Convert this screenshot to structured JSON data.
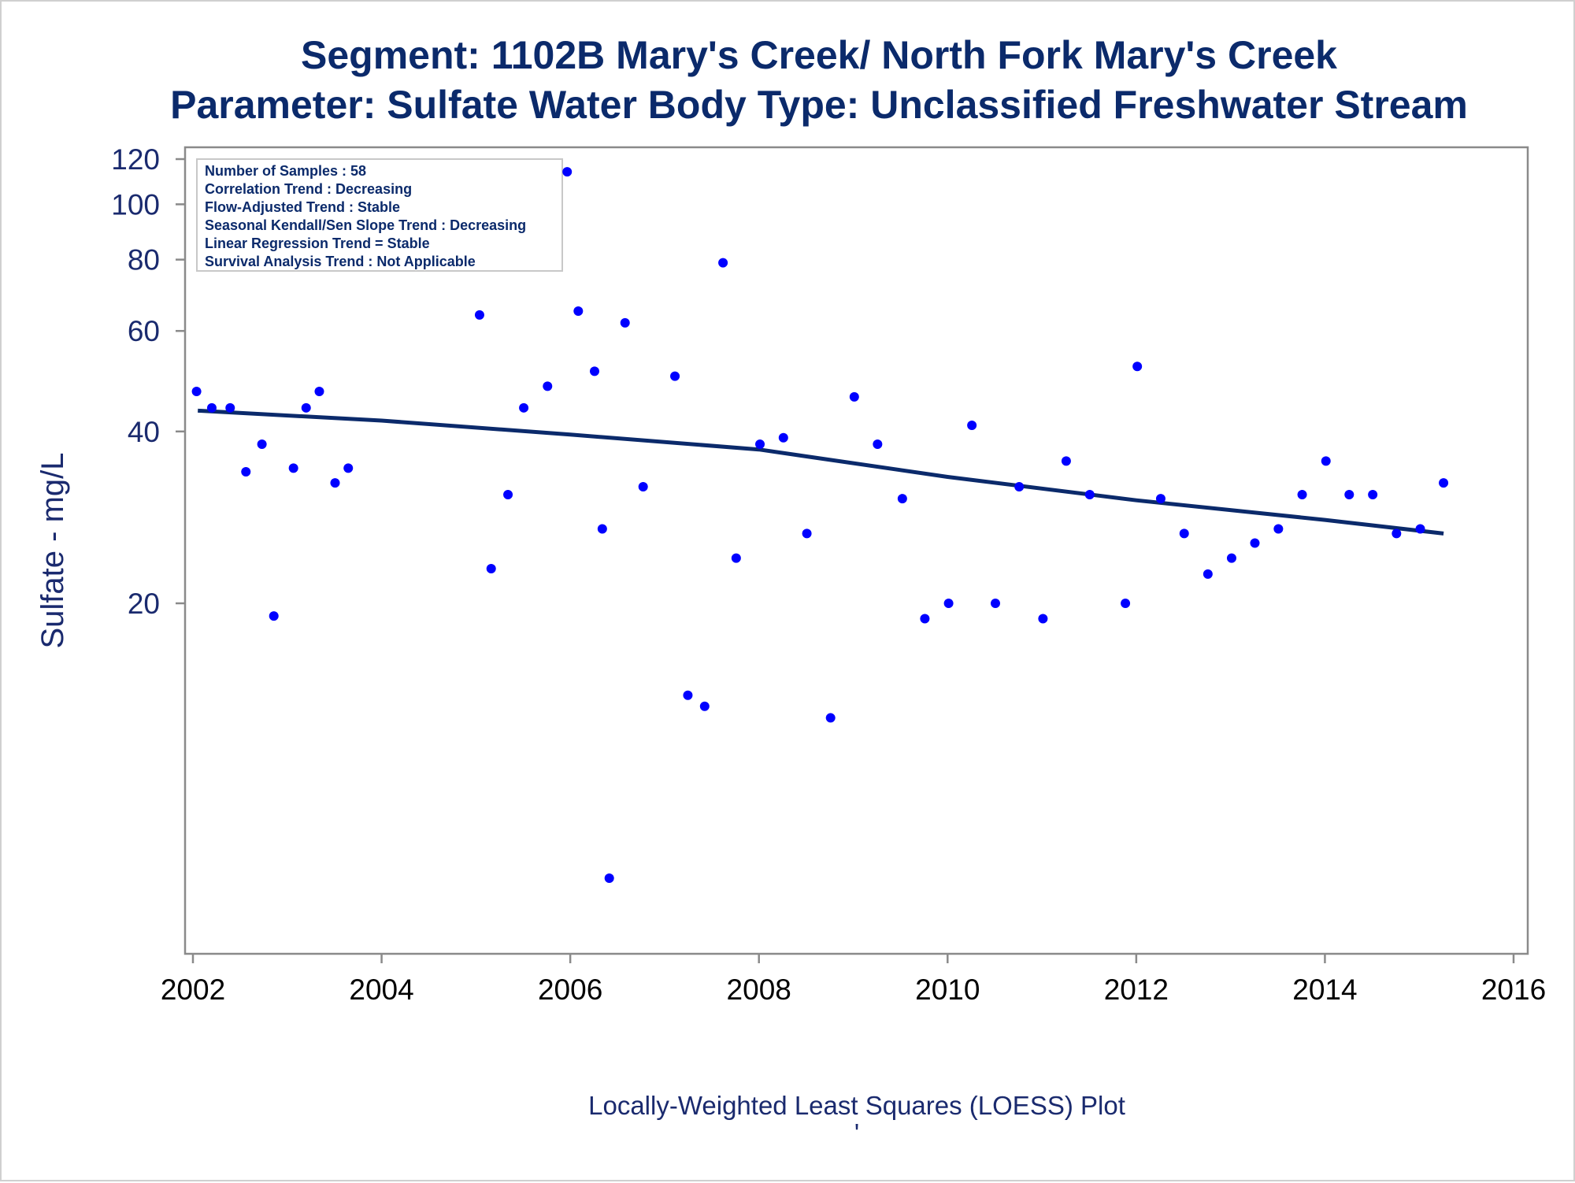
{
  "chart_data": {
    "type": "scatter",
    "title": "Segment: 1102B  Mary's Creek/ North Fork Mary's Creek",
    "subtitle": "Parameter: Sulfate   Water Body Type: Unclassified Freshwater Stream",
    "xlabel": "",
    "ylabel": "Sulfate - mg/L",
    "footnote": "Locally-Weighted Least Squares (LOESS) Plot",
    "footnote_mark": "'",
    "y_scale": "log",
    "xlim": [
      2002,
      2016
    ],
    "ylim": [
      6.5,
      122
    ],
    "x_ticks": [
      2002,
      2004,
      2006,
      2008,
      2010,
      2012,
      2014,
      2016
    ],
    "y_ticks": [
      20,
      40,
      60,
      80,
      100,
      120
    ],
    "grid": false,
    "point_color": "#0000ff",
    "line_color": "#0b2a6b",
    "stats_box": {
      "lines": [
        "Number of Samples : 58",
        "Correlation Trend : Decreasing",
        "Flow-Adjusted Trend : Stable",
        "Seasonal Kendall/Sen Slope Trend : Decreasing",
        "Linear Regression Trend = Stable",
        "Survival Analysis Trend : Not Applicable"
      ]
    },
    "series": [
      {
        "type": "scatter",
        "points": [
          {
            "x": "2002-01-15",
            "y": 47
          },
          {
            "x": "2002-03-15",
            "y": 44
          },
          {
            "x": "2002-05-25",
            "y": 44
          },
          {
            "x": "2002-07-25",
            "y": 34
          },
          {
            "x": "2002-09-25",
            "y": 38
          },
          {
            "x": "2002-11-10",
            "y": 19
          },
          {
            "x": "2003-01-25",
            "y": 34.5
          },
          {
            "x": "2003-03-15",
            "y": 44
          },
          {
            "x": "2003-05-05",
            "y": 47
          },
          {
            "x": "2003-07-05",
            "y": 32.5
          },
          {
            "x": "2003-08-25",
            "y": 34.5
          },
          {
            "x": "2005-01-15",
            "y": 64
          },
          {
            "x": "2005-03-01",
            "y": 23
          },
          {
            "x": "2005-05-05",
            "y": 31
          },
          {
            "x": "2005-07-05",
            "y": 44
          },
          {
            "x": "2005-10-05",
            "y": 48
          },
          {
            "x": "2005-12-20",
            "y": 114
          },
          {
            "x": "2006-02-01",
            "y": 65
          },
          {
            "x": "2006-04-05",
            "y": 51
          },
          {
            "x": "2006-05-05",
            "y": 27
          },
          {
            "x": "2006-06-01",
            "y": 6.6
          },
          {
            "x": "2006-08-01",
            "y": 62
          },
          {
            "x": "2006-10-10",
            "y": 32
          },
          {
            "x": "2007-02-10",
            "y": 50
          },
          {
            "x": "2007-04-01",
            "y": 13.8
          },
          {
            "x": "2007-06-05",
            "y": 13.2
          },
          {
            "x": "2007-08-15",
            "y": 79
          },
          {
            "x": "2007-10-05",
            "y": 24
          },
          {
            "x": "2008-01-05",
            "y": 38
          },
          {
            "x": "2008-04-05",
            "y": 39
          },
          {
            "x": "2008-07-05",
            "y": 26.5
          },
          {
            "x": "2008-10-05",
            "y": 12.6
          },
          {
            "x": "2009-01-05",
            "y": 46
          },
          {
            "x": "2009-04-05",
            "y": 38
          },
          {
            "x": "2009-07-10",
            "y": 30.5
          },
          {
            "x": "2009-10-05",
            "y": 18.8
          },
          {
            "x": "2010-01-05",
            "y": 20
          },
          {
            "x": "2010-04-05",
            "y": 41
          },
          {
            "x": "2010-07-05",
            "y": 20
          },
          {
            "x": "2010-10-05",
            "y": 32
          },
          {
            "x": "2011-01-05",
            "y": 18.8
          },
          {
            "x": "2011-04-05",
            "y": 35.5
          },
          {
            "x": "2011-07-05",
            "y": 31
          },
          {
            "x": "2011-11-20",
            "y": 20
          },
          {
            "x": "2012-01-05",
            "y": 52
          },
          {
            "x": "2012-04-05",
            "y": 30.5
          },
          {
            "x": "2012-07-05",
            "y": 26.5
          },
          {
            "x": "2012-10-05",
            "y": 22.5
          },
          {
            "x": "2013-01-05",
            "y": 24
          },
          {
            "x": "2013-04-05",
            "y": 25.5
          },
          {
            "x": "2013-07-05",
            "y": 27
          },
          {
            "x": "2013-10-05",
            "y": 31
          },
          {
            "x": "2014-01-05",
            "y": 35.5
          },
          {
            "x": "2014-04-05",
            "y": 31
          },
          {
            "x": "2014-07-05",
            "y": 31
          },
          {
            "x": "2014-10-05",
            "y": 26.5
          },
          {
            "x": "2015-01-05",
            "y": 27
          },
          {
            "x": "2015-04-05",
            "y": 32.5
          }
        ]
      },
      {
        "type": "line",
        "points": [
          {
            "x": "2002-01-20",
            "y": 43.5
          },
          {
            "x": "2004-01-01",
            "y": 41.8
          },
          {
            "x": "2006-01-01",
            "y": 39.5
          },
          {
            "x": "2008-01-01",
            "y": 37.2
          },
          {
            "x": "2010-01-01",
            "y": 33.3
          },
          {
            "x": "2012-01-01",
            "y": 30.3
          },
          {
            "x": "2014-01-01",
            "y": 28.0
          },
          {
            "x": "2015-04-05",
            "y": 26.5
          }
        ]
      }
    ]
  }
}
